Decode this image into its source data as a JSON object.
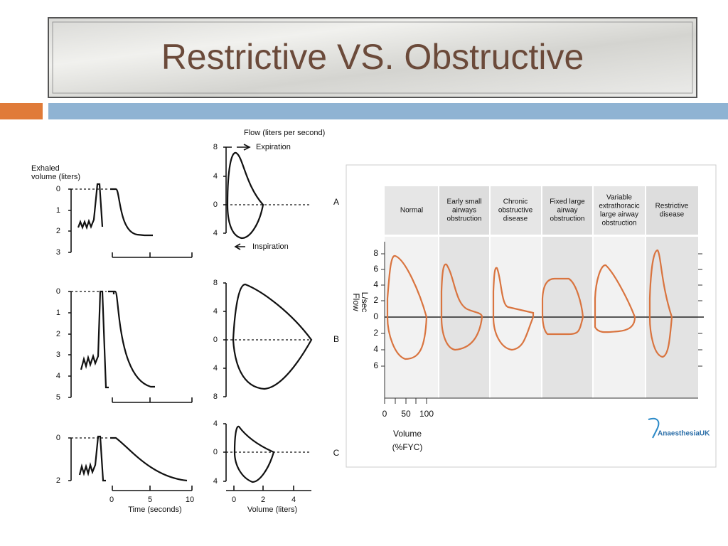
{
  "title": "Restrictive VS. Obstructive",
  "left_figure": {
    "volume_axis_label": [
      "Exhaled",
      "volume (liters)"
    ],
    "flow_axis_label": "Flow (liters per second)",
    "expiration": "Expiration",
    "inspiration": "Inspiration",
    "panels": [
      {
        "label": "A",
        "volume_ticks": [
          0,
          1,
          2,
          3
        ],
        "flow_ticks": [
          8,
          4,
          0,
          4
        ]
      },
      {
        "label": "B",
        "volume_ticks": [
          0,
          1,
          2,
          3,
          4,
          5
        ],
        "flow_ticks": [
          8,
          4,
          0,
          4,
          8
        ]
      },
      {
        "label": "C",
        "volume_ticks": [
          0,
          2
        ],
        "flow_ticks": [
          4,
          0,
          4
        ]
      }
    ],
    "time_ticks": [
      0,
      5,
      10
    ],
    "time_label": "Time (seconds)",
    "volume_ticks": [
      0,
      2,
      4
    ],
    "volume_label": "Volume (liters)"
  },
  "right_figure": {
    "columns": [
      [
        "Normal"
      ],
      [
        "Early small",
        "airways",
        "obstruction"
      ],
      [
        "Chronic",
        "obstructive",
        "disease"
      ],
      [
        "Fixed large",
        "airway",
        "obstruction"
      ],
      [
        "Variable",
        "extrathoracic",
        "large airway",
        "obstruction"
      ],
      [
        "Restrictive",
        "disease"
      ]
    ],
    "flow_label": [
      "Flow",
      "L/sec"
    ],
    "flow_ticks": [
      8,
      6,
      4,
      2,
      0,
      2,
      4,
      6
    ],
    "volume_ticks": [
      0,
      50,
      100
    ],
    "volume_label": [
      "Volume",
      "(%FYC)"
    ],
    "logo": "AnaesthesiaUK"
  }
}
